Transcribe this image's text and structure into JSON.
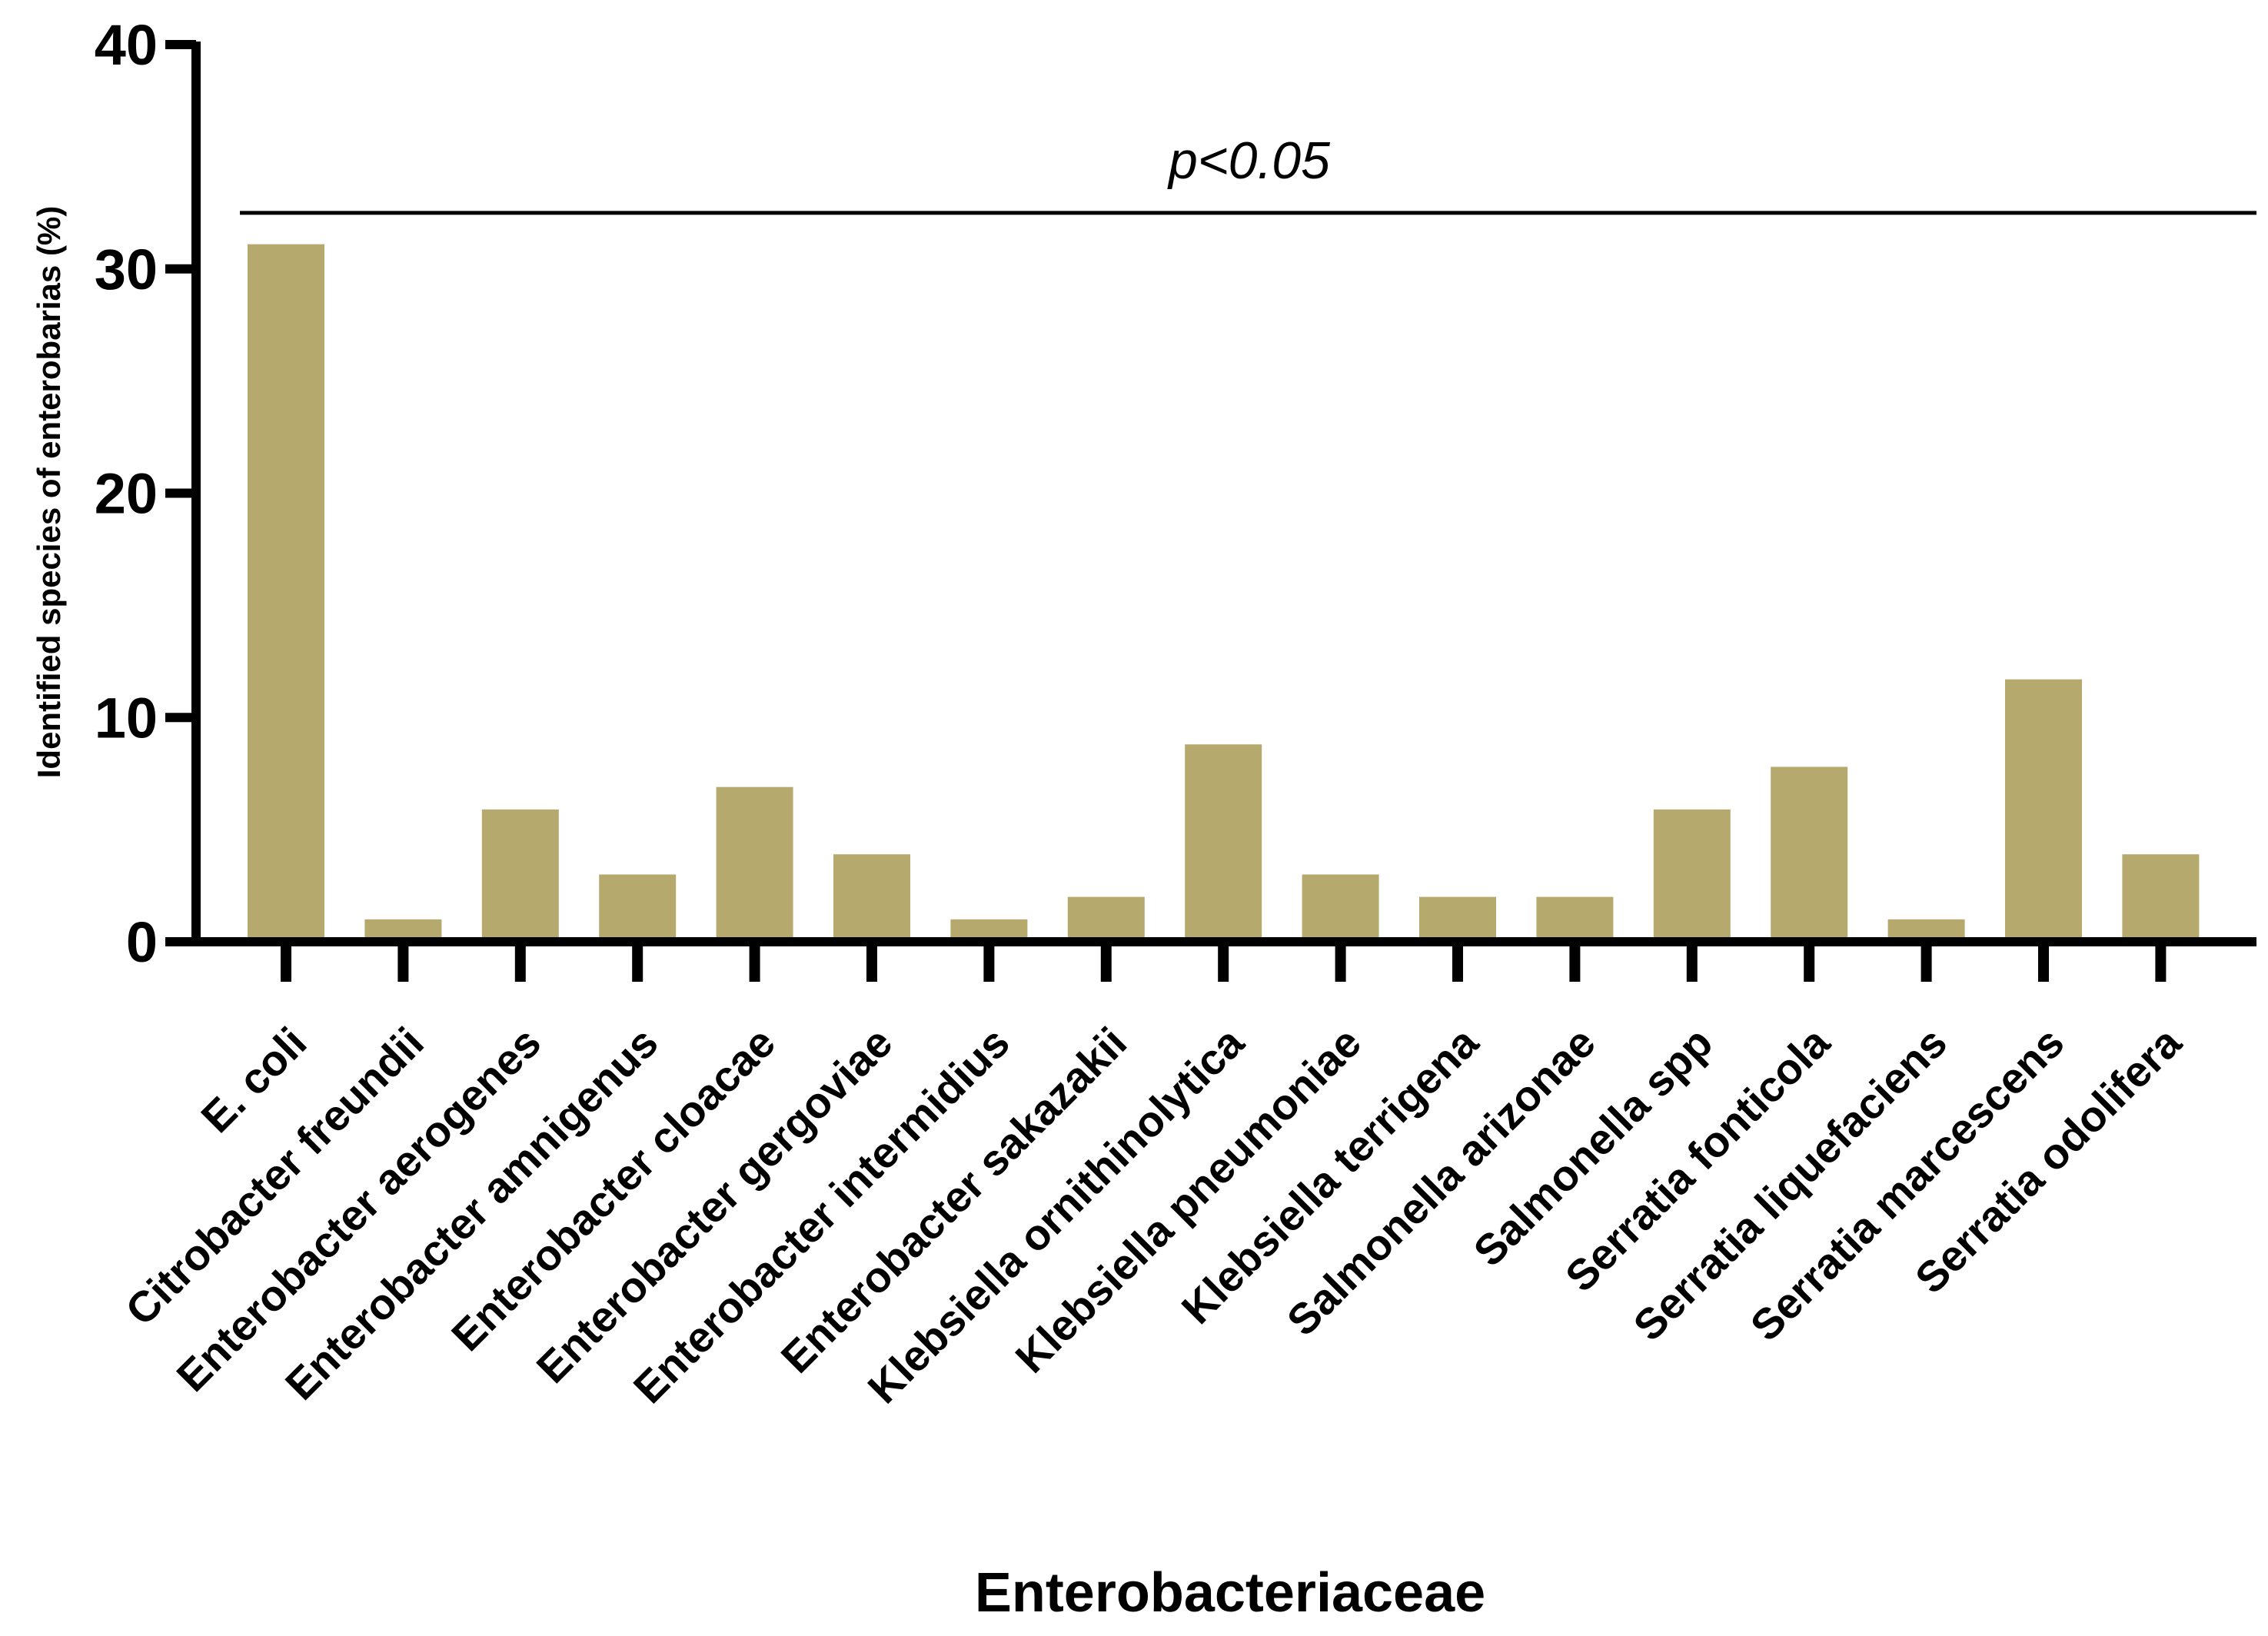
{
  "chart_data": {
    "type": "bar",
    "title": "",
    "xlabel": "Enterobacteriaceae",
    "ylabel": "Identified species of enterobarias (%)",
    "ylim": [
      0,
      40
    ],
    "yticks": [
      0,
      10,
      20,
      30,
      40
    ],
    "grid": false,
    "categories": [
      "E. coli",
      "Citrobacter freundii",
      "Enterobacter aerogenes",
      "Enterobacter amnigenus",
      "Enterobacter cloacae",
      "Enterobacter gergoviae",
      "Enterobacter intermidius",
      "Enterobacter sakazakii",
      "Klebsiella ornithinolytica",
      "Klebsiella pneumoniae",
      "Klebsiella terrigena",
      "Salmonella arizonae",
      "Salmonella spp",
      "Serratia fonticola",
      "Serratia liquefaciens",
      "Serratia marcescens",
      "Serratia odolifera"
    ],
    "values": [
      31.1,
      1.0,
      5.9,
      3.0,
      6.9,
      3.9,
      1.0,
      2.0,
      8.8,
      3.0,
      2.0,
      2.0,
      5.9,
      7.8,
      1.0,
      11.7,
      3.9
    ],
    "bar_color": "#b5a96e",
    "axis_color": "#000000",
    "annotation": {
      "text": "p<0.05",
      "line_y": 32.5
    }
  }
}
